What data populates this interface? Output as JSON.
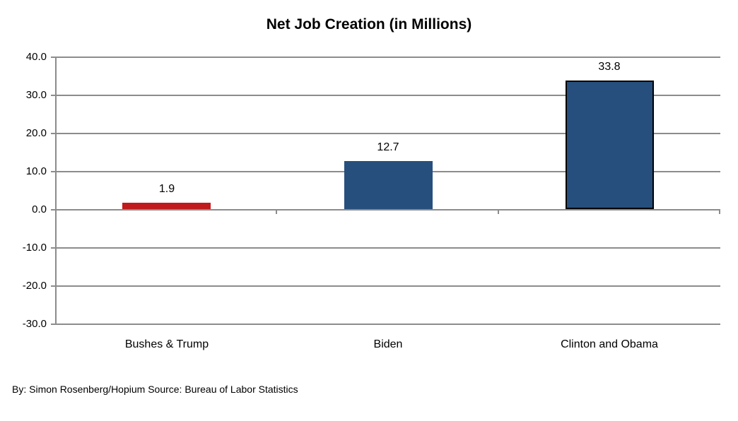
{
  "chart_data": {
    "type": "bar",
    "title": "Net Job Creation (in Millions)",
    "categories": [
      "Bushes & Trump",
      "Biden",
      "Clinton and Obama"
    ],
    "values": [
      1.9,
      12.7,
      33.8
    ],
    "data_labels": [
      "1.9",
      "12.7",
      "33.8"
    ],
    "bar_colors": [
      "#C11A1C",
      "#264F7D",
      "#264F7D"
    ],
    "bar_outlined": [
      false,
      false,
      true
    ],
    "outline_color": "#000000",
    "y_ticks": [
      40,
      30,
      20,
      10,
      0,
      -10,
      -20,
      -30
    ],
    "y_tick_labels": [
      "40.0",
      "30.0",
      "20.0",
      "10.0",
      "0.0",
      "-10.0",
      "-20.0",
      "-30.0"
    ],
    "ylim": [
      -30,
      40
    ],
    "xlabel": "",
    "ylabel": "",
    "grid": true,
    "legend": false,
    "gridline_color": "#8C8C8C",
    "label_color": "#000000"
  },
  "footer": {
    "credit": "By: Simon Rosenberg/Hopium Source: Bureau of Labor Statistics"
  }
}
